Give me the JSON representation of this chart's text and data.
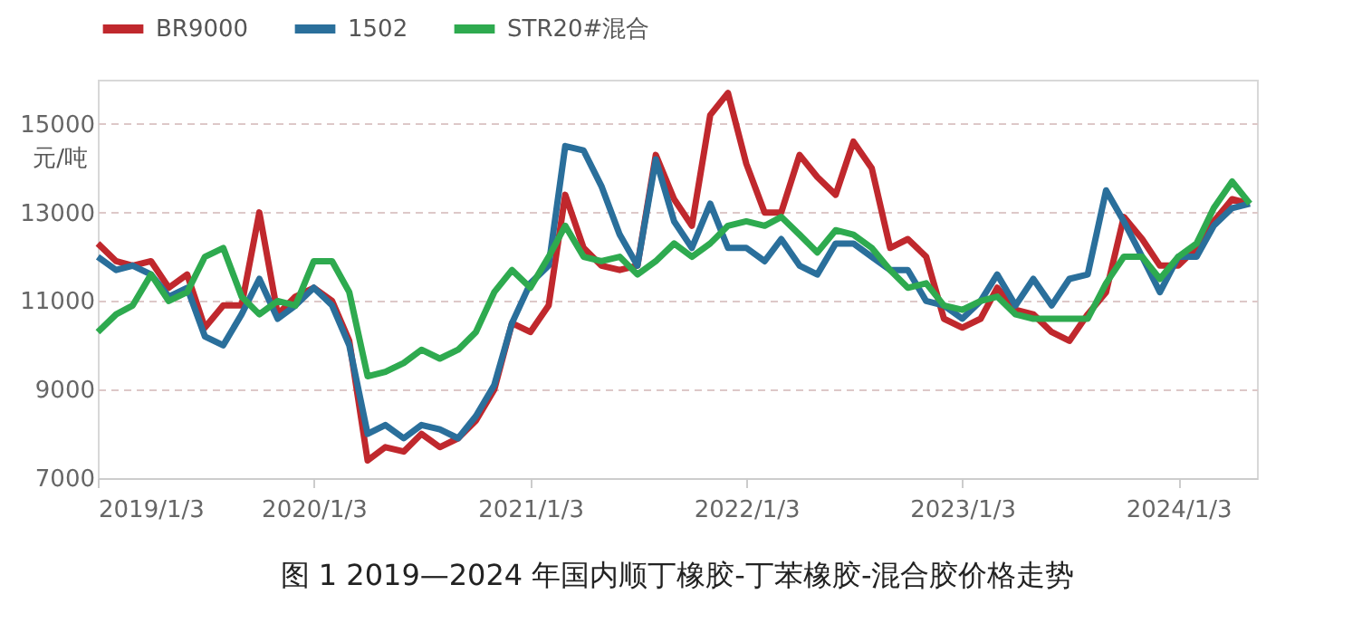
{
  "chart_data": {
    "type": "line",
    "title": "图 1 2019—2024 年国内顺丁橡胶-丁苯橡胶-混合胶价格走势",
    "ylabel": "元/吨",
    "x": [
      "2019-01-03",
      "2019-02-03",
      "2019-03-03",
      "2019-04-03",
      "2019-05-03",
      "2019-06-03",
      "2019-07-03",
      "2019-08-03",
      "2019-09-03",
      "2019-10-03",
      "2019-11-03",
      "2019-12-03",
      "2020-01-03",
      "2020-02-03",
      "2020-03-03",
      "2020-04-03",
      "2020-05-03",
      "2020-06-03",
      "2020-07-03",
      "2020-08-03",
      "2020-09-03",
      "2020-10-03",
      "2020-11-03",
      "2020-12-03",
      "2021-01-03",
      "2021-02-03",
      "2021-03-03",
      "2021-04-03",
      "2021-05-03",
      "2021-06-03",
      "2021-07-03",
      "2021-08-03",
      "2021-09-03",
      "2021-10-03",
      "2021-11-03",
      "2021-12-03",
      "2022-01-03",
      "2022-02-03",
      "2022-03-03",
      "2022-04-03",
      "2022-05-03",
      "2022-06-03",
      "2022-07-03",
      "2022-08-03",
      "2022-09-03",
      "2022-10-03",
      "2022-11-03",
      "2022-12-03",
      "2023-01-03",
      "2023-02-03",
      "2023-03-03",
      "2023-04-03",
      "2023-05-03",
      "2023-06-03",
      "2023-07-03",
      "2023-08-03",
      "2023-09-03",
      "2023-10-03",
      "2023-11-03",
      "2023-12-03",
      "2024-01-03",
      "2024-02-03",
      "2024-03-03",
      "2024-04-03",
      "2024-05-03"
    ],
    "series": [
      {
        "name": "BR9000",
        "color": "#c0282d",
        "values": [
          12300,
          11900,
          11800,
          11900,
          11300,
          11600,
          10400,
          10900,
          10900,
          13000,
          10700,
          11100,
          11300,
          11000,
          10100,
          7400,
          7700,
          7600,
          8000,
          7700,
          7900,
          8300,
          9000,
          10500,
          10300,
          10900,
          13400,
          12200,
          11800,
          11700,
          11800,
          14300,
          13300,
          12700,
          15200,
          15700,
          14100,
          13000,
          13000,
          14300,
          13800,
          13400,
          14600,
          14000,
          12200,
          12400,
          12000,
          10600,
          10400,
          10600,
          11300,
          10800,
          10700,
          10300,
          10100,
          10700,
          11200,
          12900,
          12400,
          11800,
          11800,
          12200,
          12800,
          13300,
          13200
        ]
      },
      {
        "name": "1502",
        "color": "#2a6f9b",
        "values": [
          12000,
          11700,
          11800,
          11600,
          11100,
          11300,
          10200,
          10000,
          10700,
          11500,
          10600,
          10900,
          11300,
          10900,
          10000,
          8000,
          8200,
          7900,
          8200,
          8100,
          7900,
          8400,
          9100,
          10500,
          11400,
          11800,
          14500,
          14400,
          13600,
          12500,
          11800,
          14200,
          12800,
          12200,
          13200,
          12200,
          12200,
          11900,
          12400,
          11800,
          11600,
          12300,
          12300,
          12000,
          11700,
          11700,
          11000,
          10900,
          10600,
          11000,
          11600,
          10900,
          11500,
          10900,
          11500,
          11600,
          13500,
          12800,
          12000,
          11200,
          12000,
          12000,
          12700,
          13100,
          13200
        ]
      },
      {
        "name": "STR20#混合",
        "color": "#2eaa4f",
        "values": [
          10300,
          10700,
          10900,
          11600,
          11000,
          11200,
          12000,
          12200,
          11100,
          10700,
          11000,
          10900,
          11900,
          11900,
          11200,
          9300,
          9400,
          9600,
          9900,
          9700,
          9900,
          10300,
          11200,
          11700,
          11300,
          12000,
          12700,
          12000,
          11900,
          12000,
          11600,
          11900,
          12300,
          12000,
          12300,
          12700,
          12800,
          12700,
          12900,
          12500,
          12100,
          12600,
          12500,
          12200,
          11700,
          11300,
          11400,
          10900,
          10800,
          11000,
          11100,
          10700,
          10600,
          10600,
          10600,
          10600,
          11400,
          12000,
          12000,
          11500,
          12000,
          12300,
          13100,
          13700,
          13200
        ]
      }
    ],
    "xlim": [
      "2019-01-03",
      "2024-05-15"
    ],
    "xticks": [
      {
        "value": "2019-01-03",
        "label": "2019/1/3"
      },
      {
        "value": "2020-01-03",
        "label": "2020/1/3"
      },
      {
        "value": "2021-01-03",
        "label": "2021/1/3"
      },
      {
        "value": "2022-01-03",
        "label": "2022/1/3"
      },
      {
        "value": "2023-01-03",
        "label": "2023/1/3"
      },
      {
        "value": "2024-01-03",
        "label": "2024/1/3"
      }
    ],
    "ylim": [
      7000,
      16000
    ],
    "yticks": [
      7000,
      9000,
      11000,
      13000,
      15000
    ],
    "grid": "y",
    "legend": "top",
    "line_style": "solid",
    "marker": "none"
  }
}
